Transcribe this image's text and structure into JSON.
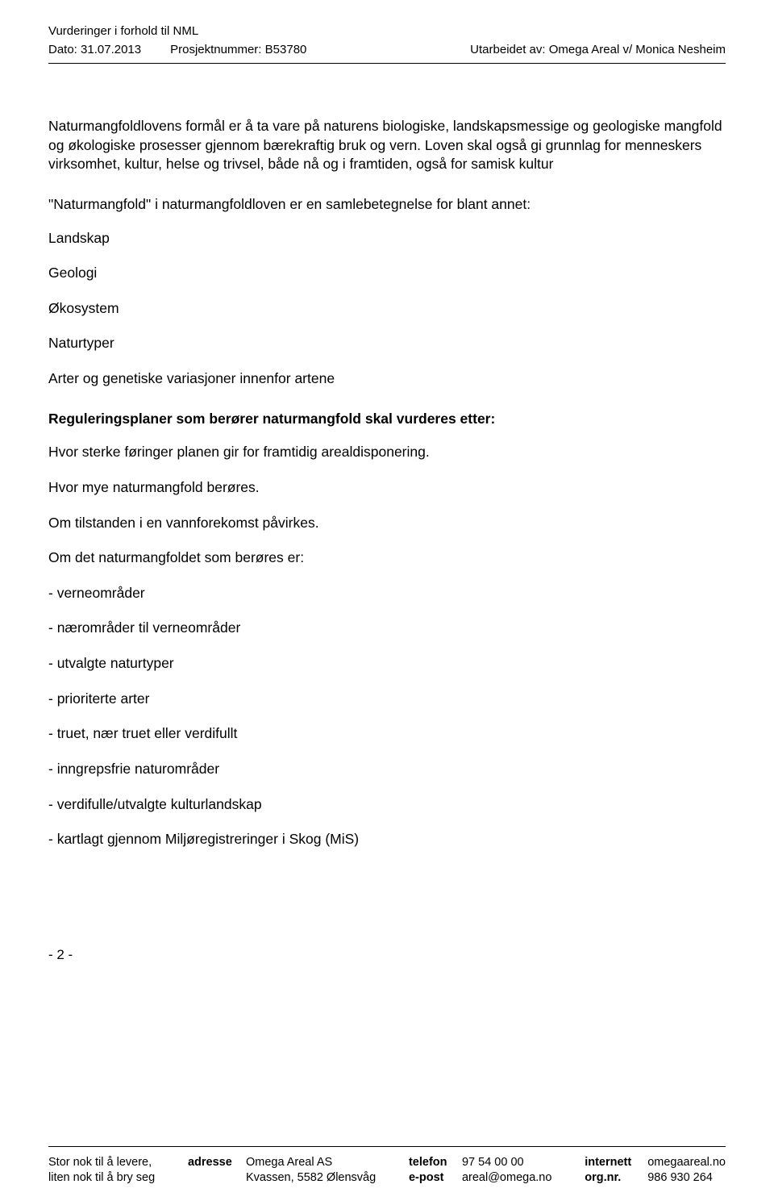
{
  "header": {
    "title": "Vurderinger i forhold til NML",
    "dato_label": "Dato:",
    "dato_value": "31.07.2013",
    "prosjekt_label": "Prosjektnummer:",
    "prosjekt_value": "B53780",
    "utarbeidet_label": "Utarbeidet av:",
    "utarbeidet_value": "Omega Areal v/ Monica Nesheim"
  },
  "content": {
    "intro": "Naturmangfoldlovens formål er å ta vare på naturens biologiske, landskapsmessige og geologiske mangfold og økologiske prosesser gjennom bærekraftig bruk og vern. Loven skal også gi grunnlag for menneskers virksomhet, kultur, helse og trivsel, både nå og i framtiden, også for samisk kultur",
    "subhead1": "\"Naturmangfold\" i naturmangfoldloven er en samlebetegnelse for blant annet:",
    "terms": [
      "Landskap",
      "Geologi",
      "Økosystem",
      "Naturtyper",
      "Arter og genetiske variasjoner innenfor artene"
    ],
    "subhead2": "Reguleringsplaner som berører naturmangfold skal vurderes etter:",
    "criteria": [
      "Hvor sterke føringer planen gir for framtidig arealdisponering.",
      "Hvor mye naturmangfold berøres.",
      "Om tilstanden i en vannforekomst påvirkes.",
      "Om det naturmangfoldet som berøres er:"
    ],
    "dash_items": [
      "- verneområder",
      "- nærområder til verneområder",
      "- utvalgte naturtyper",
      "- prioriterte arter",
      "- truet, nær truet eller verdifullt",
      "- inngrepsfrie naturområder",
      "- verdifulle/utvalgte kulturlandskap",
      "- kartlagt gjennom Miljøregistreringer i Skog (MiS)"
    ]
  },
  "pagenum": "- 2 -",
  "footer": {
    "slogan1": "Stor nok til å levere,",
    "slogan2": "liten nok til å bry seg",
    "adresse_label": "adresse",
    "adresse_line1": "Omega Areal AS",
    "adresse_line2": "Kvassen, 5582 Ølensvåg",
    "telefon_label": "telefon",
    "telefon_value": "97 54 00 00",
    "epost_label": "e-post",
    "epost_value": "areal@omega.no",
    "internett_label": "internett",
    "internett_value": "omegaareal.no",
    "orgnr_label": "org.nr.",
    "orgnr_value": "986 930 264"
  }
}
